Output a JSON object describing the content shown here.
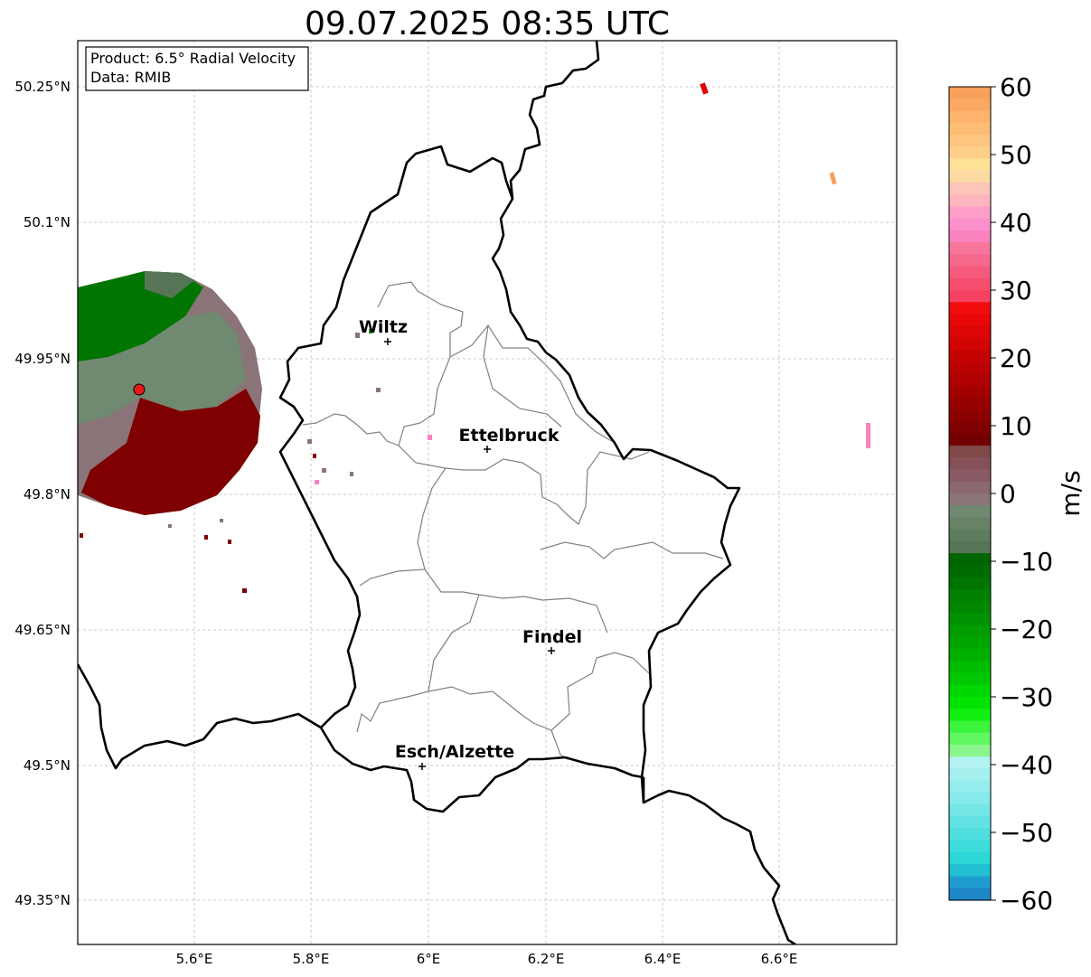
{
  "title": "09.07.2025 08:35 UTC",
  "info": {
    "product": "Product: 6.5° Radial Velocity",
    "source": "Data: RMIB"
  },
  "axes": {
    "lon_ticks": [
      "5.6°E",
      "5.8°E",
      "6°E",
      "6.2°E",
      "6.4°E",
      "6.6°E"
    ],
    "lat_ticks": [
      "50.25°N",
      "50.1°N",
      "49.95°N",
      "49.8°N",
      "49.65°N",
      "49.5°N",
      "49.35°N"
    ]
  },
  "cities": [
    {
      "name": "Wiltz"
    },
    {
      "name": "Ettelbruck"
    },
    {
      "name": "Findel"
    },
    {
      "name": "Esch/Alzette"
    }
  ],
  "colorbar": {
    "unit": "m/s",
    "ticks": [
      "60",
      "50",
      "40",
      "30",
      "20",
      "10",
      "0",
      "−10",
      "−20",
      "−30",
      "−40",
      "−50",
      "−60"
    ],
    "colors": [
      "#f9a05a",
      "#fba862",
      "#fdb36b",
      "#fdbd75",
      "#fec680",
      "#fed08a",
      "#fde297",
      "#fdd9a4",
      "#fdc4b9",
      "#fdb6bd",
      "#fd9ec8",
      "#fc90cc",
      "#fa82bf",
      "#f8759c",
      "#f7688d",
      "#f65b7e",
      "#f54e6f",
      "#f54260",
      "#f20d0d",
      "#e80808",
      "#dd0505",
      "#d20404",
      "#c60303",
      "#bb0202",
      "#af0101",
      "#a30000",
      "#970000",
      "#8b0000",
      "#7e0000",
      "#720000",
      "#804848",
      "#865058",
      "#8a5a64",
      "#8c6870",
      "#8a7478",
      "#6f8a70",
      "#678267",
      "#5e7c5e",
      "#567556",
      "#006400",
      "#006c00",
      "#007500",
      "#007f00",
      "#008800",
      "#009200",
      "#009c00",
      "#00a600",
      "#00b000",
      "#00bc00",
      "#00c800",
      "#00d600",
      "#00e400",
      "#12f012",
      "#3cf53c",
      "#60f760",
      "#8af58a",
      "#b3f2f2",
      "#a6f0f0",
      "#96eded",
      "#86eaea",
      "#74e6e6",
      "#62e2e2",
      "#50dede",
      "#3edbdb",
      "#2cd7d7",
      "#22c0d2",
      "#1f9cd0",
      "#1f86c8"
    ]
  }
}
